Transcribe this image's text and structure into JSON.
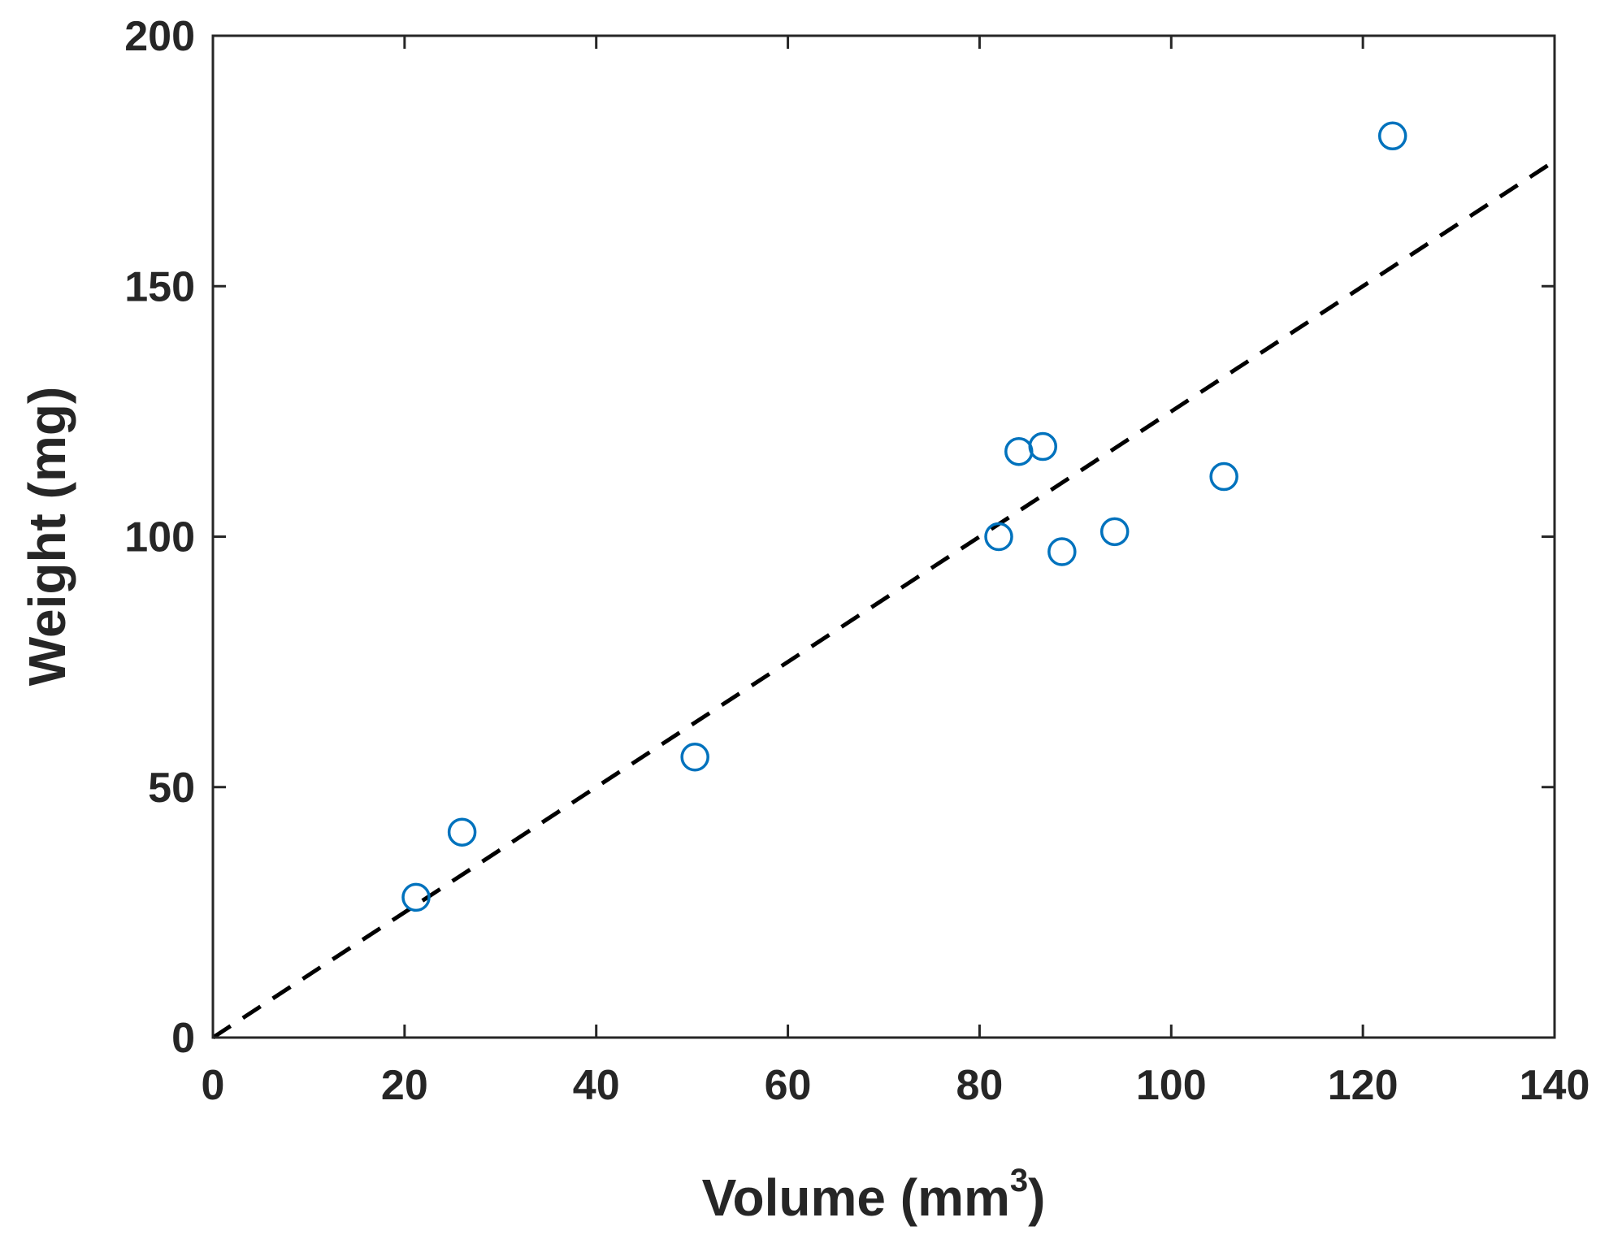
{
  "chart_data": {
    "type": "scatter",
    "title": "",
    "xlabel": "Volume (mm",
    "xlabel_superscript": "3",
    "xlabel_suffix": ")",
    "ylabel": "Weight (mg)",
    "xlim": [
      0,
      140
    ],
    "ylim": [
      0,
      200
    ],
    "xticks": [
      0,
      20,
      40,
      60,
      80,
      100,
      120,
      140
    ],
    "yticks": [
      0,
      50,
      100,
      150,
      200
    ],
    "grid": false,
    "series": [
      {
        "name": "measurements",
        "marker": "circle-open",
        "color": "#0072BD",
        "x": [
          21.2,
          26.0,
          50.3,
          82.0,
          84.1,
          86.6,
          88.6,
          94.1,
          105.5,
          123.1
        ],
        "y": [
          28,
          41,
          56,
          100,
          117,
          118,
          97,
          101,
          112,
          180
        ]
      }
    ],
    "fit_line": {
      "style": "dashed",
      "color": "#000000",
      "x": [
        0,
        140
      ],
      "y": [
        0,
        175
      ]
    }
  }
}
